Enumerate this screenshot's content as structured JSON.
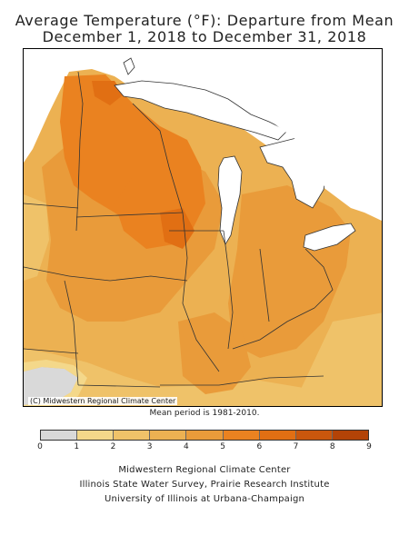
{
  "title_line1": "Average Temperature (°F): Departure from Mean",
  "title_line2": "December 1, 2018 to December 31, 2018",
  "copyright": "(C) Midwestern Regional Climate Center",
  "mean_period": "Mean period is 1981-2010.",
  "legend": {
    "ticks": [
      "0",
      "1",
      "2",
      "3",
      "4",
      "5",
      "6",
      "7",
      "8",
      "9"
    ],
    "colors": [
      "#d9d9d9",
      "#f4d88a",
      "#efc269",
      "#ecb152",
      "#e99b3a",
      "#ea8220",
      "#e16f13",
      "#c9570d",
      "#b34307"
    ]
  },
  "credits": [
    "Midwestern Regional Climate Center",
    "Illinois State Water Survey, Prairie Research Institute",
    "University of Illinois at Urbana-Champaign"
  ],
  "map_colors": {
    "water": "#ffffff",
    "outside": "#ffffff",
    "boundary": "#333333"
  }
}
